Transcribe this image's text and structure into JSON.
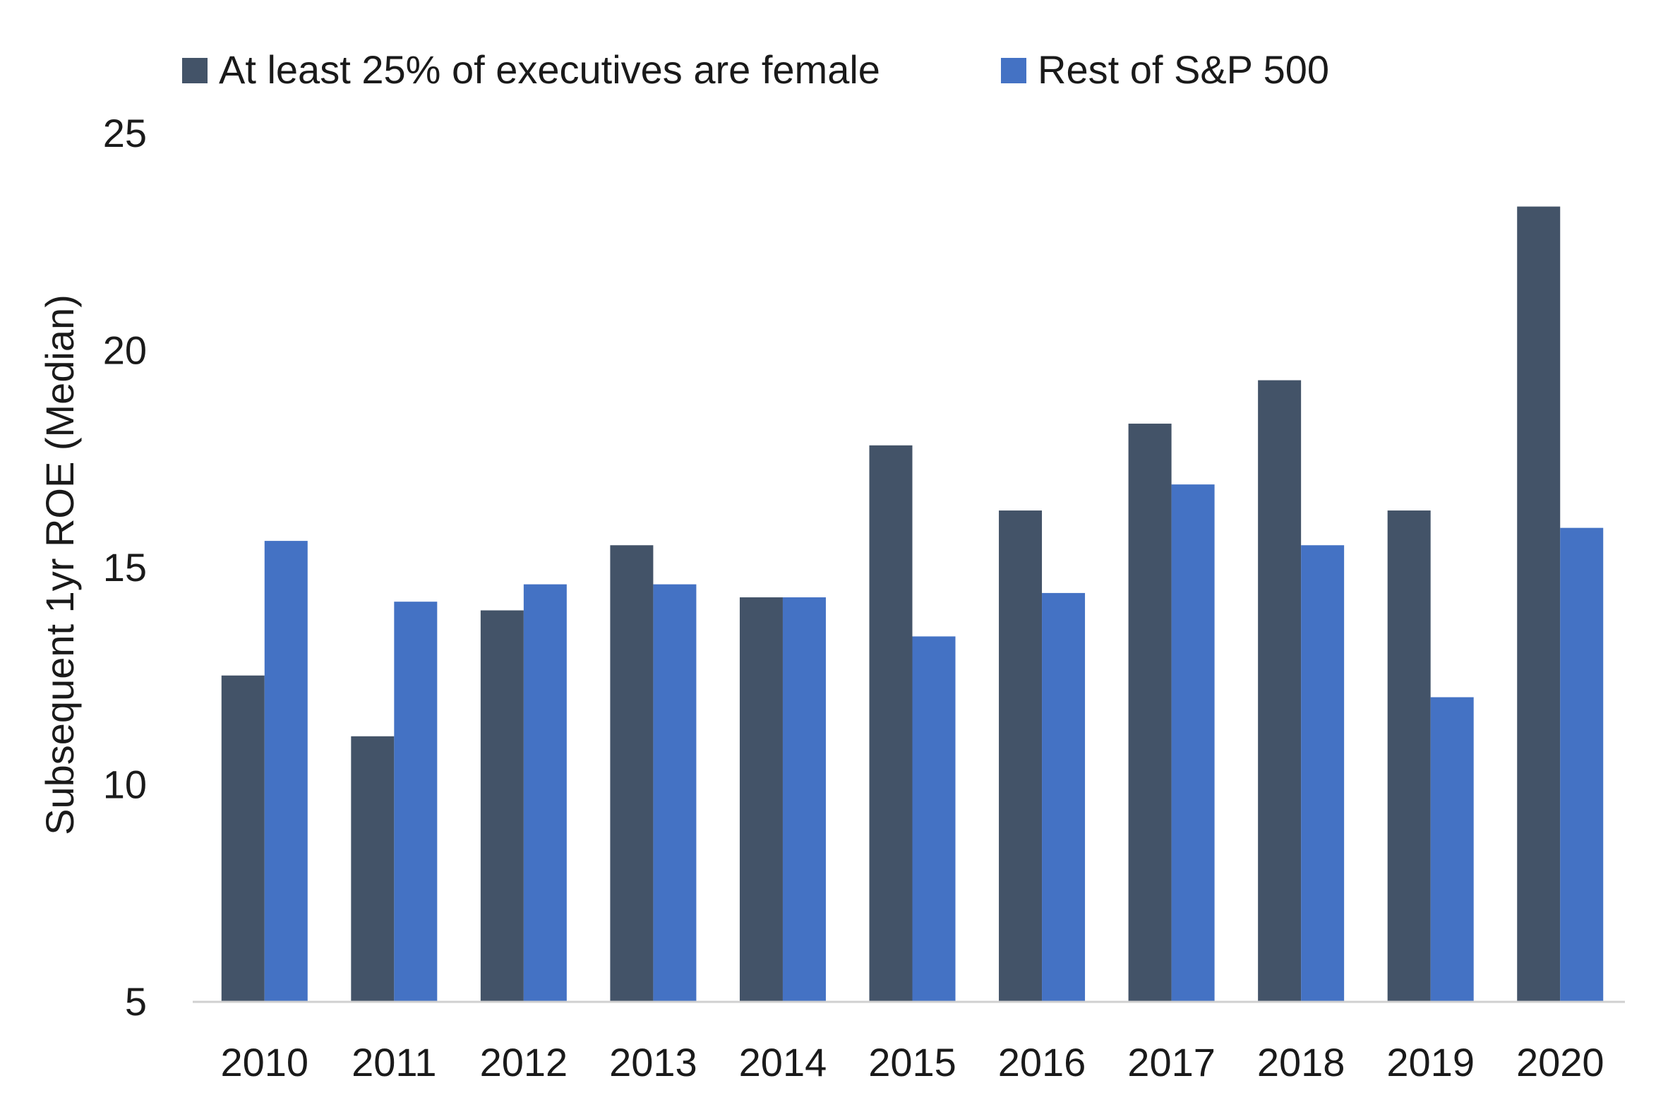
{
  "chart_data": {
    "type": "bar",
    "categories": [
      "2010",
      "2011",
      "2012",
      "2013",
      "2014",
      "2015",
      "2016",
      "2017",
      "2018",
      "2019",
      "2020"
    ],
    "series": [
      {
        "name": "At least 25% of executives are female",
        "color": "#435368",
        "values": [
          12.5,
          11.1,
          14.0,
          15.5,
          14.3,
          17.8,
          16.3,
          18.3,
          19.3,
          16.3,
          23.3
        ]
      },
      {
        "name": "Rest of S&P 500",
        "color": "#4472C4",
        "values": [
          15.6,
          14.2,
          14.6,
          14.6,
          14.3,
          13.4,
          14.4,
          16.9,
          15.5,
          12.0,
          15.9
        ]
      }
    ],
    "ylabel": "Subsequent 1yr ROE (Median)",
    "xlabel": "",
    "ylim": [
      5,
      25
    ],
    "yticks": [
      5,
      10,
      15,
      20,
      25
    ],
    "grid": false,
    "legend_position": "top-left"
  }
}
